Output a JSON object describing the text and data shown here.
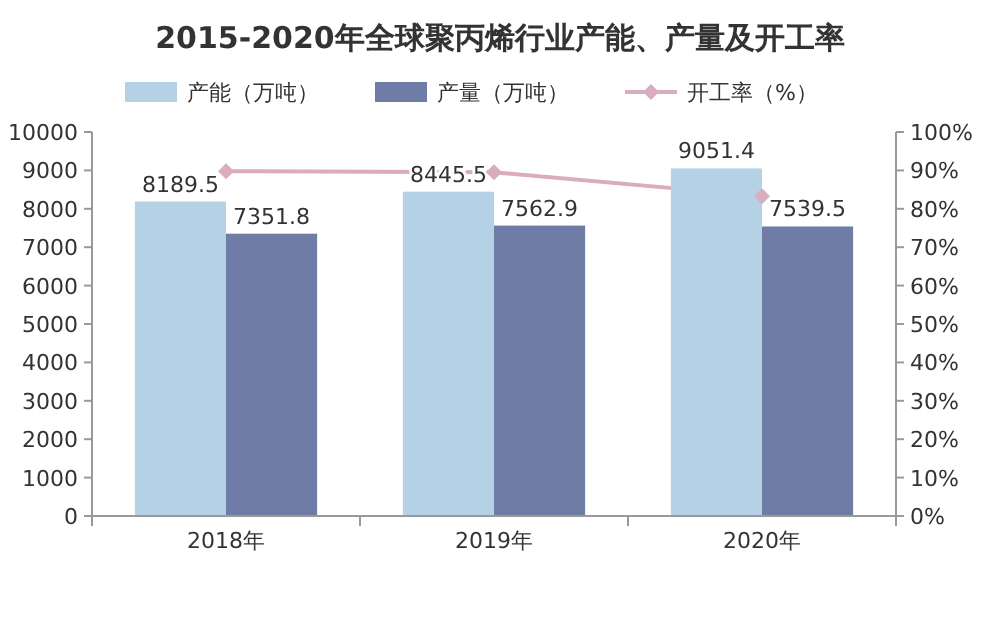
{
  "chart_data": {
    "type": "bar",
    "title": "2015-2020年全球聚丙烯行业产能、产量及开工率",
    "categories": [
      "2018年",
      "2019年",
      "2020年"
    ],
    "series": [
      {
        "name": "产能（万吨）",
        "color": "#b5d1e6",
        "values": [
          8189.5,
          8445.5,
          9051.4
        ],
        "value_labels": [
          "8189.5",
          "8445.5",
          "9051.4"
        ]
      },
      {
        "name": "产量（万吨）",
        "color": "#6f7ca6",
        "values": [
          7351.8,
          7562.9,
          7539.5
        ],
        "value_labels": [
          "7351.8",
          "7562.9",
          "7539.5"
        ]
      },
      {
        "name": "开工率（%）",
        "type": "line",
        "axis": "y2",
        "color": "#d9adbf",
        "marker": "diamond",
        "values": [
          89.8,
          89.5,
          83.3
        ]
      }
    ],
    "ylim": [
      0,
      10000
    ],
    "yticks": [
      0,
      1000,
      2000,
      3000,
      4000,
      5000,
      6000,
      7000,
      8000,
      9000,
      10000
    ],
    "y2lim": [
      0,
      100
    ],
    "y2ticks": [
      {
        "value": 0,
        "label": "0%"
      },
      {
        "value": 10,
        "label": "10%"
      },
      {
        "value": 20,
        "label": "20%"
      },
      {
        "value": 30,
        "label": "30%"
      },
      {
        "value": 40,
        "label": "40%"
      },
      {
        "value": 50,
        "label": "50%"
      },
      {
        "value": 60,
        "label": "60%"
      },
      {
        "value": 70,
        "label": "70%"
      },
      {
        "value": 80,
        "label": "80%"
      },
      {
        "value": 90,
        "label": "90%"
      },
      {
        "value": 100,
        "label": "100%"
      }
    ],
    "grid": false,
    "legend": "top"
  }
}
